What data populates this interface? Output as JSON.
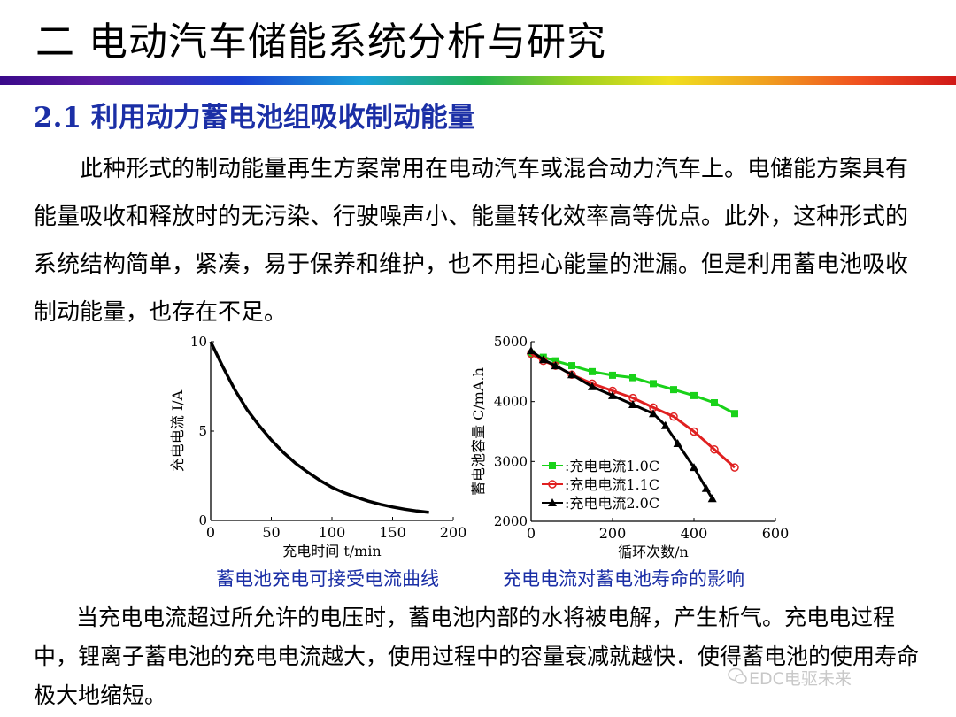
{
  "header": {
    "title": "二 电动汽车储能系统分析与研究"
  },
  "section": {
    "number": "2.1",
    "title": "利用动力蓄电池组吸收制动能量"
  },
  "paragraphs": {
    "intro": "此种形式的制动能量再生方案常用在电动汽车或混合动力汽车上。电储能方案具有能量吸收和释放时的无污染、行驶噪声小、能量转化效率高等优点。此外，这种形式的系统结构简单，紧凑，易于保养和维护，也不用担心能量的泄漏。但是利用蓄电池吸收制动能量，也存在不足。",
    "conclusion": "当充电电流超过所允许的电压时，蓄电池内部的水将被电解，产生析气。充电电过程中，锂离子蓄电池的充电电流越大，使用过程中的容量衰减就越快．使得蓄电池的使用寿命极大地缩短。"
  },
  "captions": {
    "left": "蓄电池充电可接受电流曲线",
    "right": "充电电流对蓄电池寿命的影响"
  },
  "watermark": {
    "text": "EDC电驱未来",
    "icon": "wechat-icon"
  },
  "chart_data": [
    {
      "type": "line",
      "title": "",
      "xlabel": "充电时间 t/min",
      "ylabel": "充电电流 I/A",
      "xlim": [
        0,
        200
      ],
      "ylim": [
        0,
        10
      ],
      "xticks": [
        "0",
        "50",
        "100",
        "150",
        "200"
      ],
      "yticks": [
        "0",
        "5",
        "10"
      ],
      "grid": false,
      "series": [
        {
          "x": [
            0,
            10,
            20,
            30,
            40,
            50,
            60,
            70,
            80,
            90,
            100,
            110,
            120,
            130,
            140,
            150,
            160,
            170,
            180
          ],
          "y": [
            10,
            8.6,
            7.3,
            6.2,
            5.3,
            4.5,
            3.8,
            3.2,
            2.7,
            2.25,
            1.85,
            1.55,
            1.3,
            1.08,
            0.9,
            0.75,
            0.63,
            0.53,
            0.45
          ],
          "color": "#000000"
        }
      ]
    },
    {
      "type": "line",
      "title": "",
      "xlabel": "循环次数/n",
      "ylabel": "蓄电池容量 C/mA.h",
      "xlim": [
        0,
        600
      ],
      "ylim": [
        2000,
        5000
      ],
      "xticks": [
        "0",
        "200",
        "400",
        "600"
      ],
      "yticks": [
        "2000",
        "3000",
        "4000",
        "5000"
      ],
      "legend": "bottom-left",
      "grid": false,
      "series": [
        {
          "name": ":充电电流1.0C",
          "color": "#19d219",
          "marker": "square",
          "x": [
            0,
            30,
            60,
            100,
            150,
            200,
            250,
            300,
            350,
            400,
            450,
            500
          ],
          "y": [
            4800,
            4740,
            4680,
            4600,
            4500,
            4440,
            4400,
            4300,
            4200,
            4100,
            3980,
            3800
          ]
        },
        {
          "name": ":充电电流1.1C",
          "color": "#e02020",
          "marker": "circle",
          "x": [
            0,
            30,
            60,
            100,
            150,
            200,
            250,
            300,
            350,
            400,
            450,
            500
          ],
          "y": [
            4800,
            4680,
            4600,
            4450,
            4300,
            4180,
            4060,
            3900,
            3750,
            3500,
            3200,
            2900
          ]
        },
        {
          "name": ":充电电流2.0C",
          "color": "#000000",
          "marker": "triangle",
          "x": [
            0,
            30,
            60,
            100,
            150,
            200,
            250,
            300,
            330,
            360,
            400,
            430,
            445
          ],
          "y": [
            4850,
            4700,
            4600,
            4450,
            4250,
            4100,
            3950,
            3800,
            3600,
            3300,
            2900,
            2550,
            2380
          ]
        }
      ]
    }
  ]
}
